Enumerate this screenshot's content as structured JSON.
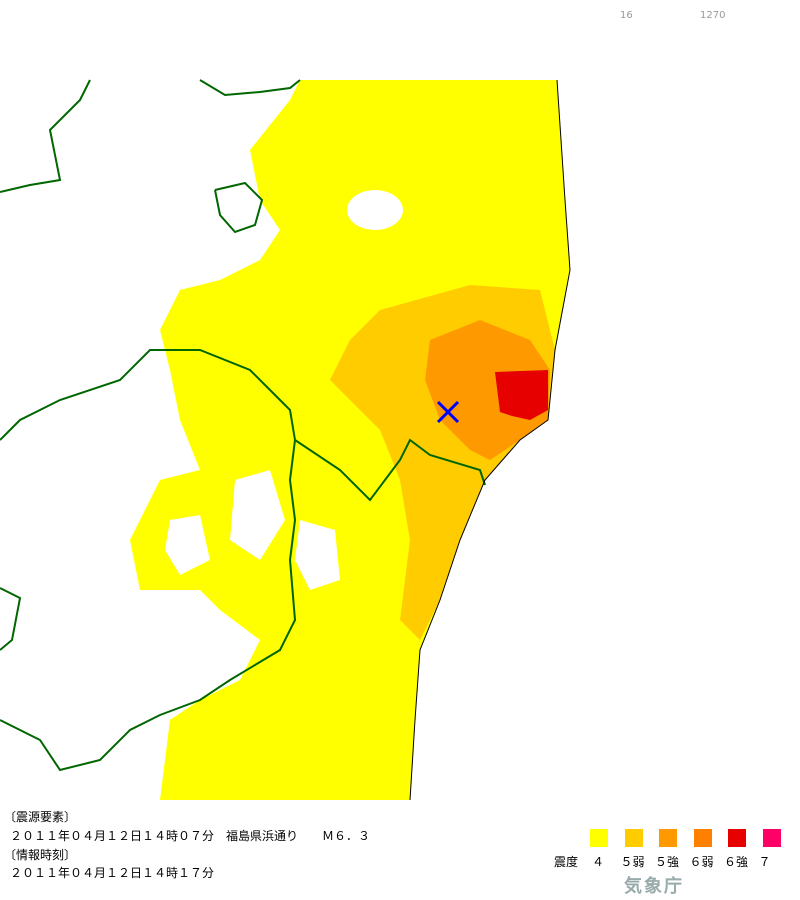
{
  "header": {
    "left_number": "16",
    "right_number": "1270"
  },
  "info": {
    "source_heading": "〔震源要素〕",
    "source_text": "２０１１年０４月１２日１４時０７分　福島県浜通り　　Ｍ６．３",
    "time_heading": "〔情報時刻〕",
    "time_text": "２０１１年０４月１２日１４時１７分"
  },
  "legend": {
    "title": "震度",
    "items": [
      {
        "label": "４",
        "color": "#ffff00"
      },
      {
        "label": "５弱",
        "color": "#ffcc00"
      },
      {
        "label": "５強",
        "color": "#ff9900"
      },
      {
        "label": "６弱",
        "color": "#ff7f00"
      },
      {
        "label": "６強",
        "color": "#e60000"
      },
      {
        "label": "７",
        "color": "#ff0066"
      }
    ]
  },
  "logo": "気象庁"
}
